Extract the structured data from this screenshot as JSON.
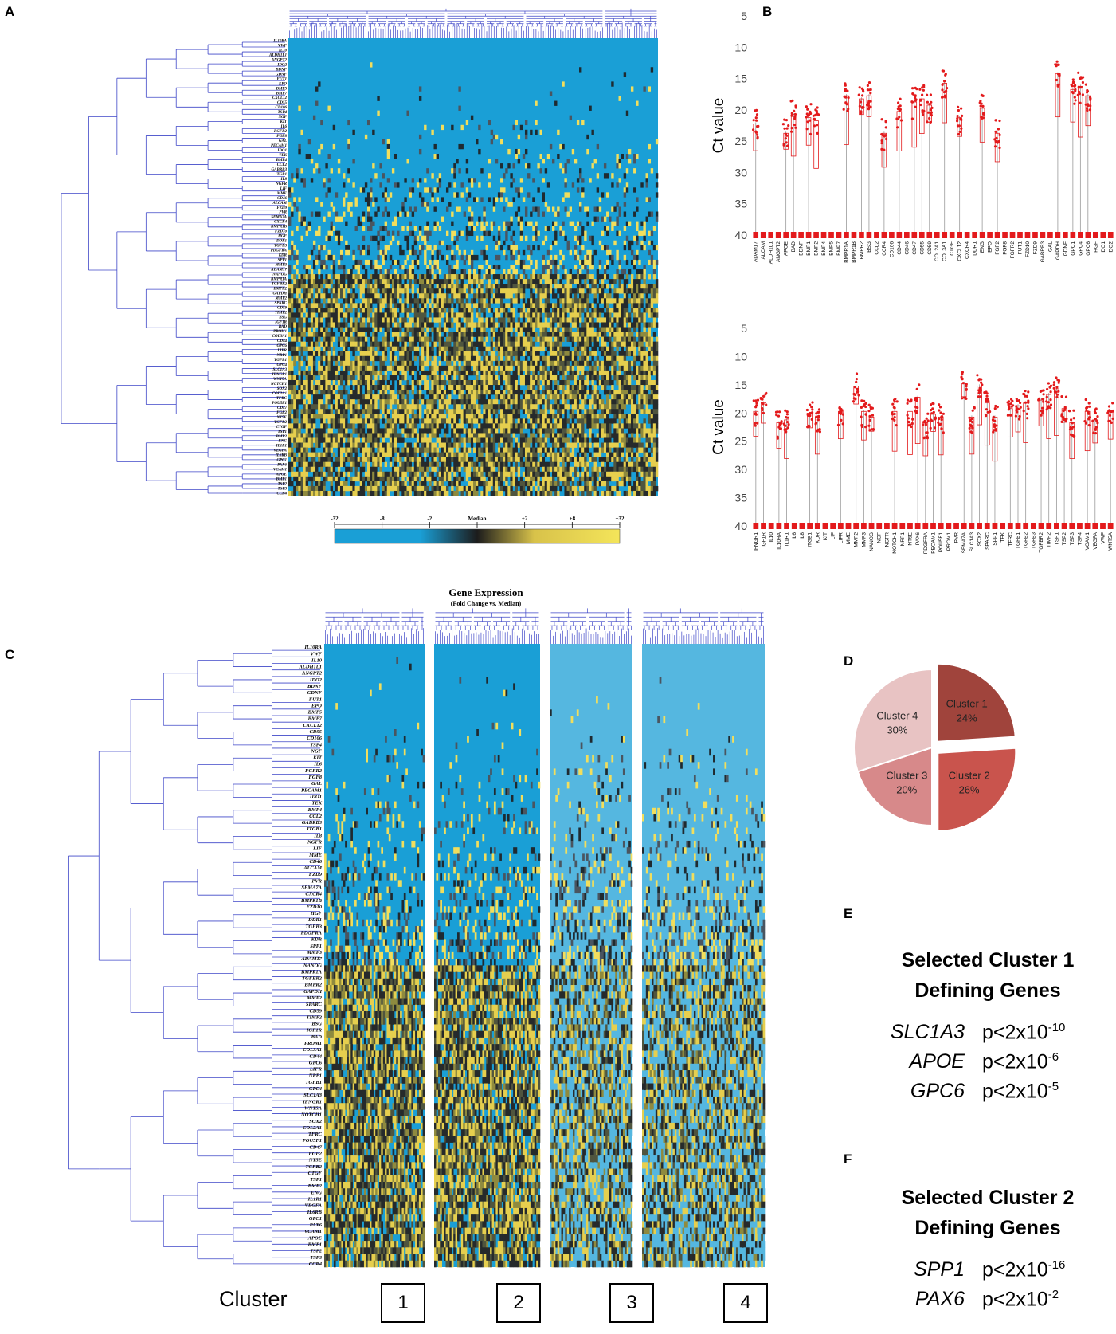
{
  "panels": {
    "A": "A",
    "B": "B",
    "C": "C",
    "D": "D",
    "E": "E",
    "F": "F"
  },
  "colorbar": {
    "ticks": [
      "-32",
      "-8",
      "-2",
      "Median",
      "+2",
      "+8",
      "+32"
    ],
    "title": "Gene Expression",
    "subtitle": "(Fold Change vs. Median)",
    "colors": {
      "low": "#1a9fd6",
      "mid": "#1c1c1c",
      "high": "#f4e55a"
    }
  },
  "colors": {
    "heat_low": "#1a9fd6",
    "heat_low_light": "#55b7e0",
    "dendro": "#3f47c8",
    "boxplot": "#e31a1c"
  },
  "genes_A": [
    "IL10RA",
    "VWF",
    "IL10",
    "ALDH1L1",
    "ANGPT2",
    "IDO2",
    "BDNF",
    "GDNF",
    "FUT1",
    "EPO",
    "BMP5",
    "BMP7",
    "CXCL12",
    "CD55",
    "CD106",
    "TSP4",
    "NGF",
    "KIT",
    "IL6",
    "FGFR2",
    "FGF8",
    "GAL",
    "PECAM1",
    "IDO1",
    "TEK",
    "BMP4",
    "CCL2",
    "GABRB3",
    "ITGB1",
    "IL8",
    "NGFR",
    "LIF",
    "MME",
    "CD46",
    "ALCAM",
    "FZD9",
    "PVR",
    "SEMA7A",
    "CXCR4",
    "BMPR1B",
    "FZD10",
    "HGF",
    "DDR1",
    "TGFB3",
    "PDGFRA",
    "KDR",
    "SPP1",
    "MMP3",
    "ADAM17",
    "NANOG",
    "BMPR1A",
    "TGFBR2",
    "BMPR2",
    "GAPDH",
    "MMP2",
    "SPARC",
    "CD59",
    "TIMP2",
    "BSG",
    "IGF1R",
    "BAD",
    "PROM1",
    "COL3A1",
    "CD44",
    "GPC6",
    "LIFR",
    "NRP1",
    "TGFB1",
    "GPC4",
    "SLC1A3",
    "IFNGR1",
    "WNT5A",
    "NOTCH1",
    "SOX2",
    "COL2A1",
    "TFRC",
    "POU5F1",
    "CD47",
    "FGF2",
    "NT5E",
    "TGFB2",
    "CTGF",
    "TSP1",
    "BMP2",
    "ENG",
    "IL1R1",
    "VEGFA",
    "IL6RB",
    "GPC1",
    "PAX6",
    "VCAM1",
    "APOE",
    "BMP1",
    "TSP2",
    "TSP3",
    "CCR4"
  ],
  "genes_C": [
    "IL10RA",
    "VWF",
    "IL10",
    "ALDH1L1",
    "ANGPT2",
    "IDO2",
    "BDNF",
    "GDNF",
    "FUT1",
    "EPO",
    "BMP5",
    "BMP7",
    "CXCL12",
    "CD55",
    "CD106",
    "TSP4",
    "NGF",
    "KIT",
    "IL6",
    "FGFR2",
    "FGF8",
    "GAL",
    "PECAM1",
    "IDO1",
    "TEK",
    "BMP4",
    "CCL2",
    "GABRB3",
    "ITGB1",
    "IL8",
    "NGFR",
    "LIF",
    "MME",
    "CD46",
    "ALCAM",
    "FZD9",
    "PVR",
    "SEMA7A",
    "CXCR4",
    "BMPR1B",
    "FZD10",
    "HGF",
    "DDR1",
    "TGFB3",
    "PDGFRA",
    "KDR",
    "SPP1",
    "MMP3",
    "ADAM17",
    "NANOG",
    "BMPR1A",
    "TGFBR2",
    "BMPR2",
    "GAPDH",
    "MMP2",
    "SPARC",
    "CD59",
    "TIMP2",
    "BSG",
    "IGF1R",
    "BAD",
    "PROM1",
    "COL3A1",
    "CD44",
    "GPC6",
    "LIFR",
    "NRP1",
    "TGFB1",
    "GPC4",
    "SLC1A3",
    "IFNGR1",
    "WNT5A",
    "NOTCH1",
    "SOX2",
    "COL2A1",
    "TFRC",
    "POU5F1",
    "CD47",
    "FGF2",
    "NT5E",
    "TGFB2",
    "CTGF",
    "TSP1",
    "BMP2",
    "ENG",
    "IL1R1",
    "VEGFA",
    "IL6RB",
    "GPC1",
    "PAX6",
    "VCAM1",
    "APOE",
    "BMP1",
    "TSP2",
    "TSP3",
    "CCR4"
  ],
  "chart_data": [
    {
      "panel": "B-top",
      "type": "box",
      "ylabel": "Ct value",
      "ylim": [
        5,
        40
      ],
      "yticks": [
        5,
        10,
        15,
        20,
        25,
        30,
        35,
        40
      ],
      "categories": [
        "ADAM17",
        "ALCAM",
        "ALDH1L1",
        "ANGPT2",
        "APOE",
        "BAD",
        "BDNF",
        "BMP1",
        "BMP2",
        "BMP4",
        "BMP5",
        "BMP7",
        "BMPR1A",
        "BMPR1B",
        "BMPR2",
        "BSG",
        "CCL2",
        "CCR4",
        "CD106",
        "CD44",
        "CD46",
        "CD47",
        "CD55",
        "CD59",
        "COL2A1",
        "COL3A1",
        "CTGF",
        "CXCL12",
        "CXCR4",
        "DDR1",
        "ENG",
        "EPO",
        "FGF2",
        "FGF8",
        "FGFR2",
        "FUT1",
        "FZD10",
        "FZD9",
        "GABRB3",
        "GAL",
        "GAPDH",
        "GDNF",
        "GPC1",
        "GPC4",
        "GPC6",
        "HGF",
        "IDO1",
        "IDO2"
      ],
      "medians": [
        22.5,
        40,
        40,
        40,
        24,
        21,
        40,
        21.5,
        22,
        40,
        40,
        40,
        18,
        40,
        18.5,
        18,
        40,
        24,
        40,
        20.5,
        40,
        19,
        18.5,
        19.5,
        40,
        16,
        40,
        21.5,
        40,
        40,
        20,
        40,
        24,
        40,
        40,
        40,
        40,
        40,
        40,
        40,
        14.5,
        40,
        17,
        16.5,
        18,
        40,
        40,
        40
      ]
    },
    {
      "panel": "B-bottom",
      "type": "box",
      "ylabel": "Ct value",
      "ylim": [
        5,
        40
      ],
      "yticks": [
        5,
        10,
        15,
        20,
        25,
        30,
        35,
        40
      ],
      "categories": [
        "IFNGR1",
        "IGF1R",
        "IL10",
        "IL10RA",
        "IL1R1",
        "IL6",
        "IL8",
        "ITGB1",
        "KDR",
        "KIT",
        "LIF",
        "LIFR",
        "MME",
        "MMP2",
        "MMP3",
        "NANOG",
        "NGF",
        "NGFR",
        "NOTCH1",
        "NRP1",
        "NT5E",
        "PAX6",
        "PDGFRA",
        "PECAM1",
        "POU5F1",
        "PROM1",
        "PVR",
        "SEMA7A",
        "SLC1A3",
        "SOX2",
        "SPARC",
        "SPP1",
        "TEK",
        "TFRC",
        "TGFB1",
        "TGFB2",
        "TGFB3",
        "TGFBR2",
        "TIMP2",
        "TSP1",
        "TSP2",
        "TSP3",
        "TSP4",
        "VCAM1",
        "VEGFA",
        "VWF",
        "WNT5A"
      ],
      "medians": [
        20,
        18.5,
        40,
        22,
        21.5,
        40,
        40,
        20.5,
        21,
        40,
        40,
        20,
        40,
        15.5,
        20,
        21,
        40,
        40,
        20,
        40,
        20,
        17.5,
        22,
        20.5,
        21,
        40,
        40,
        15,
        21,
        15.5,
        18.5,
        21,
        40,
        19.5,
        19,
        18.5,
        40,
        18,
        17,
        16,
        19.5,
        22,
        40,
        20,
        21.5,
        40,
        20
      ]
    },
    {
      "panel": "D",
      "type": "pie",
      "labels": [
        "Cluster 1",
        "Cluster 2",
        "Cluster 3",
        "Cluster 4"
      ],
      "values": [
        24,
        26,
        20,
        30
      ],
      "value_labels": [
        "24%",
        "26%",
        "20%",
        "30%"
      ],
      "colors": [
        "#a0443c",
        "#c9544d",
        "#d7898a",
        "#e8c3c3"
      ],
      "exploded": [
        true,
        true,
        false,
        false
      ]
    }
  ],
  "panel_C": {
    "cluster_word": "Cluster",
    "clusters": [
      "1",
      "2",
      "3",
      "4"
    ]
  },
  "panel_E": {
    "title_line1": "Selected Cluster 1",
    "title_line2": "Defining Genes",
    "rows": [
      {
        "gene": "SLC1A3",
        "p": "p<2x10",
        "exp": "-10"
      },
      {
        "gene": "APOE",
        "p": "p<2x10",
        "exp": "-6"
      },
      {
        "gene": "GPC6",
        "p": "p<2x10",
        "exp": "-5"
      }
    ]
  },
  "panel_F": {
    "title_line1": "Selected Cluster 2",
    "title_line2": "Defining Genes",
    "rows": [
      {
        "gene": "SPP1",
        "p": "p<2x10",
        "exp": "-16"
      },
      {
        "gene": "PAX6",
        "p": "p<2x10",
        "exp": "-2"
      }
    ]
  }
}
